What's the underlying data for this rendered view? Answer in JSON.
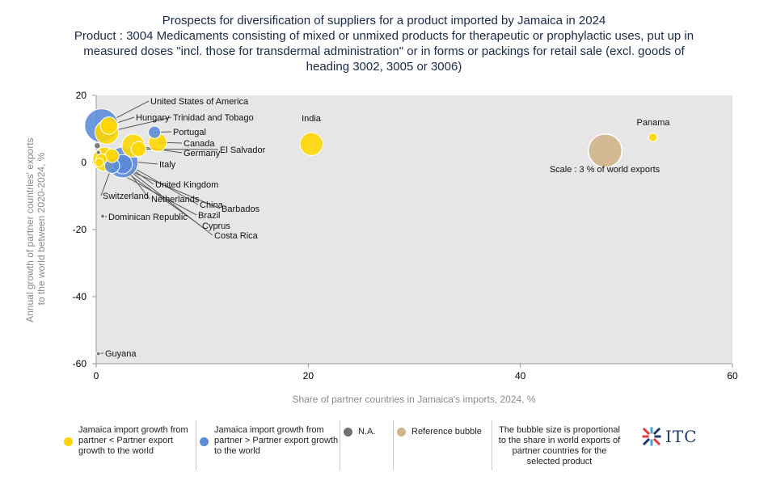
{
  "title": {
    "line1": "Prospects for diversification of suppliers for a product imported by Jamaica in 2024",
    "line2": "Product : 3004 Medicaments consisting of mixed or unmixed products for therapeutic or prophylactic uses, put up in",
    "line3": "measured doses \"incl. those for transdermal administration\" or in forms or packings for retail sale (excl. goods of",
    "line4": "heading 3002, 3005 or 3006)"
  },
  "colors": {
    "yellow": "#FFD700",
    "blue": "#5B8BDB",
    "na": "#707070",
    "reference": "#D2B48C",
    "plot_bg": "#E6E6E6"
  },
  "chart_data": {
    "type": "scatter",
    "xlabel": "Share of partner countries in Jamaica's imports, 2024, %",
    "ylabel_line1": "Annual growth of partner countries' exports",
    "ylabel_line2": "to the world between 2020-2024, %",
    "xlim": [
      0,
      60
    ],
    "ylim": [
      -60,
      20
    ],
    "xticks": [
      0,
      20,
      40,
      60
    ],
    "yticks": [
      20,
      0,
      -20,
      -40,
      -60
    ],
    "grid": false,
    "points": [
      {
        "label": "United States of America",
        "x": 0.5,
        "y": 11,
        "size": 3.0,
        "group": "blue"
      },
      {
        "label": "Hungary",
        "x": 1.2,
        "y": 11,
        "size": 0.8,
        "group": "yellow"
      },
      {
        "label": "Trinidad and Tobago",
        "x": 1.0,
        "y": 9,
        "size": 1.5,
        "group": "yellow"
      },
      {
        "label": "Portugal",
        "x": 5.5,
        "y": 9,
        "size": 0.4,
        "group": "blue"
      },
      {
        "label": "Canada",
        "x": 5.8,
        "y": 6,
        "size": 0.9,
        "group": "yellow"
      },
      {
        "label": "Germany",
        "x": 3.5,
        "y": 5,
        "size": 1.4,
        "group": "yellow"
      },
      {
        "label": "El Salvador",
        "x": 4.0,
        "y": 4,
        "size": 0.6,
        "group": "yellow"
      },
      {
        "label": "India",
        "x": 20.3,
        "y": 5.5,
        "size": 1.4,
        "group": "yellow"
      },
      {
        "label": "Panama",
        "x": 52.5,
        "y": 7.5,
        "size": 0.2,
        "group": "yellow"
      },
      {
        "label": "Italy",
        "x": 0.8,
        "y": 1,
        "size": 1.5,
        "group": "yellow"
      },
      {
        "label": "United Kingdom",
        "x": 2.5,
        "y": 0,
        "size": 2.5,
        "group": "blue"
      },
      {
        "label": "Switzerland",
        "x": 1.5,
        "y": -1,
        "size": 0.6,
        "group": "blue"
      },
      {
        "label": "Netherlands",
        "x": 2.5,
        "y": -0.5,
        "size": 1.0,
        "group": "blue"
      },
      {
        "label": "China",
        "x": 1.5,
        "y": 2,
        "size": 0.5,
        "group": "yellow"
      },
      {
        "label": "Barbados",
        "x": 0.5,
        "y": 1,
        "size": 0.3,
        "group": "yellow"
      },
      {
        "label": "Brazil",
        "x": 0.3,
        "y": 0,
        "size": 0.2,
        "group": "yellow"
      },
      {
        "label": "Cyprus",
        "x": 0.2,
        "y": 3,
        "size": 0.05,
        "group": "na"
      },
      {
        "label": "Costa Rica",
        "x": 0.1,
        "y": 5,
        "size": 0.1,
        "group": "na"
      },
      {
        "label": "Dominican Republic",
        "x": 0.6,
        "y": -16,
        "size": 0.02,
        "group": "na"
      },
      {
        "label": "Guyana",
        "x": 0.2,
        "y": -57,
        "size": 0.02,
        "group": "na"
      }
    ],
    "reference": {
      "label": "Scale : 3 % of world exports",
      "x": 48,
      "y": 3.5,
      "size": 3.0
    }
  },
  "legend": {
    "yellow_label": "Jamaica import growth from partner < Partner export growth to the world",
    "blue_label": "Jamaica import growth from partner > Partner export growth to the world",
    "na_label": "N.A.",
    "reference_label": "Reference bubble",
    "note": "The bubble size is proportional to the share in world exports of partner countries for the selected product"
  },
  "logo": {
    "text": "ITC"
  }
}
